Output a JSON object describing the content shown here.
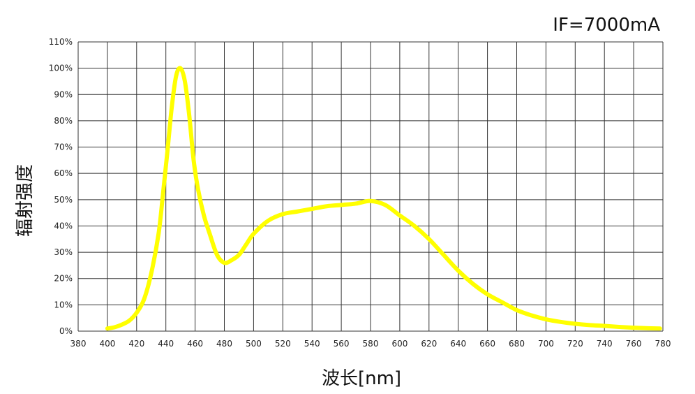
{
  "chart_data": {
    "type": "line",
    "title": "",
    "annotation": "IF=7000mA",
    "xlabel": "波长[nm]",
    "ylabel": "辐射强度",
    "xlim": [
      380,
      780
    ],
    "ylim": [
      0,
      110
    ],
    "x_ticks": [
      380,
      400,
      420,
      440,
      460,
      480,
      500,
      520,
      540,
      560,
      580,
      600,
      620,
      640,
      660,
      680,
      700,
      720,
      740,
      760,
      780
    ],
    "y_ticks": [
      0,
      10,
      20,
      30,
      40,
      50,
      60,
      70,
      80,
      90,
      100,
      110
    ],
    "y_tick_labels": [
      "0%",
      "10%",
      "20%",
      "30%",
      "40%",
      "50%",
      "60%",
      "70%",
      "80%",
      "90%",
      "100%",
      "110%"
    ],
    "grid": true,
    "legend": "none",
    "line_color": "#ffff00",
    "series": [
      {
        "x": [
          400,
          405,
          410,
          415,
          420,
          425,
          430,
          435,
          438,
          441,
          444,
          447,
          450,
          453,
          456,
          459,
          462,
          466,
          470,
          475,
          480,
          485,
          490,
          495,
          500,
          510,
          520,
          530,
          540,
          550,
          560,
          570,
          580,
          590,
          600,
          610,
          620,
          630,
          640,
          650,
          660,
          670,
          680,
          690,
          700,
          710,
          720,
          730,
          740,
          750,
          760,
          770,
          778
        ],
        "y": [
          1,
          1.5,
          2.5,
          4,
          7,
          12,
          22,
          37,
          52,
          68,
          85,
          97,
          100,
          95,
          82,
          65,
          54,
          44,
          37,
          29,
          26,
          27,
          29,
          33,
          37,
          42,
          44.5,
          45.5,
          46.5,
          47.5,
          48,
          48.5,
          49.5,
          48,
          44,
          40,
          35,
          29,
          23,
          18,
          14,
          11,
          8,
          6,
          4.5,
          3.5,
          2.8,
          2.3,
          2,
          1.6,
          1.3,
          1.1,
          1
        ]
      }
    ]
  }
}
